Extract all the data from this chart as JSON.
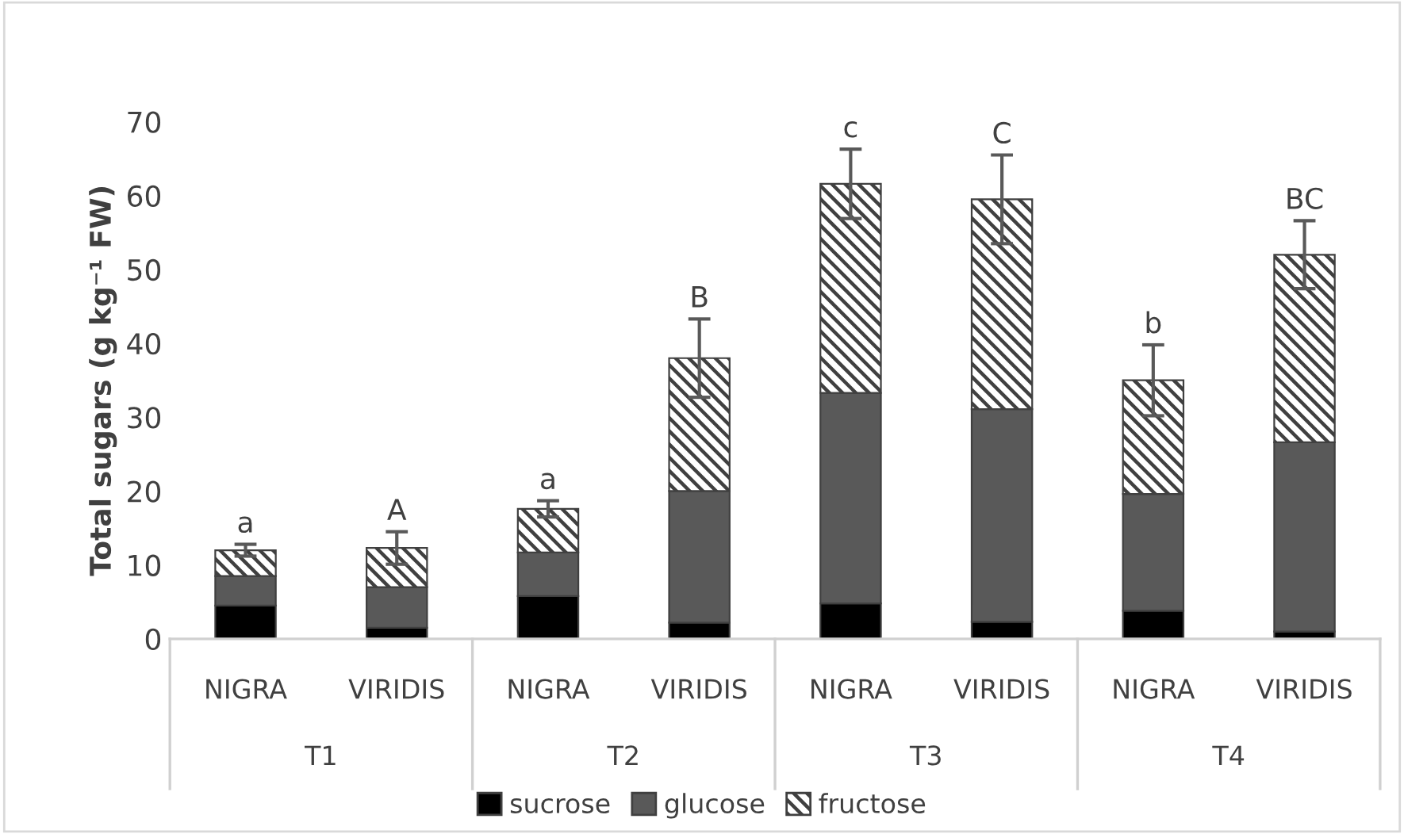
{
  "chart_data": {
    "type": "bar",
    "stacked": true,
    "ylabel": "Total sugars (g kg⁻¹ FW)",
    "categories": [
      "NIGRA",
      "VIRIDIS",
      "NIGRA",
      "VIRIDIS",
      "NIGRA",
      "VIRIDIS",
      "NIGRA",
      "VIRIDIS"
    ],
    "series": [
      {
        "name": "sucrose",
        "color": "#000000",
        "values": [
          4.5,
          1.5,
          5.8,
          2.2,
          4.8,
          2.3,
          3.8,
          1.0
        ]
      },
      {
        "name": "glucose",
        "color": "#595959",
        "values": [
          4.0,
          5.5,
          5.9,
          17.8,
          28.5,
          28.8,
          15.8,
          25.6
        ]
      },
      {
        "name": "fructose",
        "color": "#404040",
        "values": [
          3.5,
          5.3,
          5.9,
          18.0,
          28.3,
          28.4,
          15.4,
          25.4
        ],
        "errors": [
          0.8,
          2.2,
          1.1,
          5.3,
          4.7,
          6.0,
          4.8,
          4.6
        ]
      }
    ],
    "annotations": [
      "a",
      "A",
      "a",
      "B",
      "c",
      "C",
      "b",
      "BC",
      "T1",
      "T2",
      "T3",
      "T4"
    ],
    "ylim": [
      0,
      70
    ],
    "yticks": [
      0,
      10,
      20,
      30,
      40,
      50,
      60,
      70
    ],
    "grid": false,
    "legend": "bottom"
  }
}
